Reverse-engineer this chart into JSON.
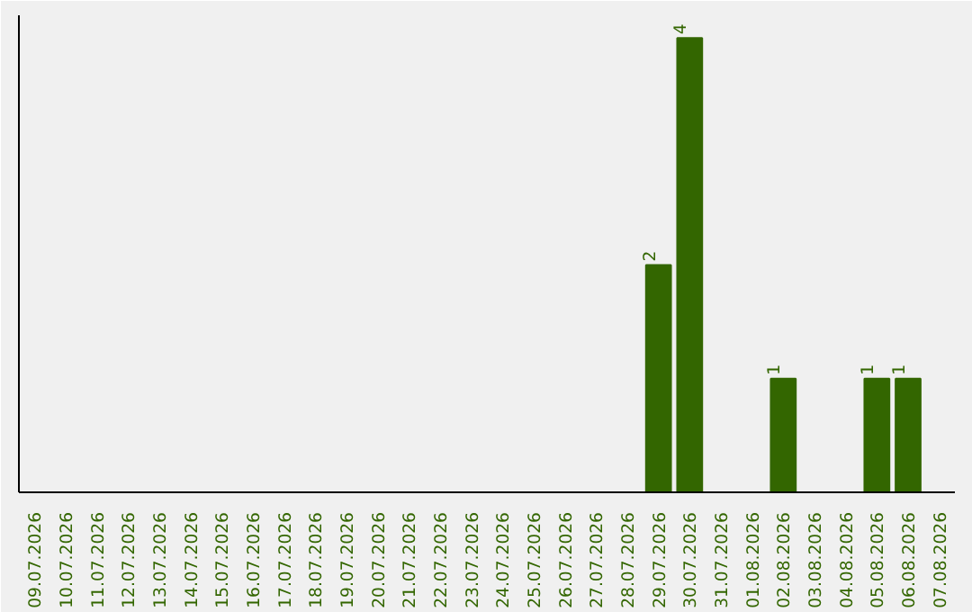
{
  "chart_data": {
    "type": "bar",
    "categories": [
      "09.07.2026",
      "10.07.2026",
      "11.07.2026",
      "12.07.2026",
      "13.07.2026",
      "14.07.2026",
      "15.07.2026",
      "16.07.2026",
      "17.07.2026",
      "18.07.2026",
      "19.07.2026",
      "20.07.2026",
      "21.07.2026",
      "22.07.2026",
      "23.07.2026",
      "24.07.2026",
      "25.07.2026",
      "26.07.2026",
      "27.07.2026",
      "28.07.2026",
      "29.07.2026",
      "30.07.2026",
      "31.07.2026",
      "01.08.2026",
      "02.08.2026",
      "03.08.2026",
      "04.08.2026",
      "05.08.2026",
      "06.08.2026",
      "07.08.2026"
    ],
    "values": [
      null,
      null,
      null,
      null,
      null,
      null,
      null,
      null,
      null,
      null,
      null,
      null,
      null,
      null,
      null,
      null,
      null,
      null,
      null,
      null,
      2,
      4,
      null,
      null,
      1,
      null,
      null,
      1,
      1,
      null
    ],
    "data_labels": true,
    "color": "#336600",
    "tick_labels": "x",
    "grid": false
  }
}
